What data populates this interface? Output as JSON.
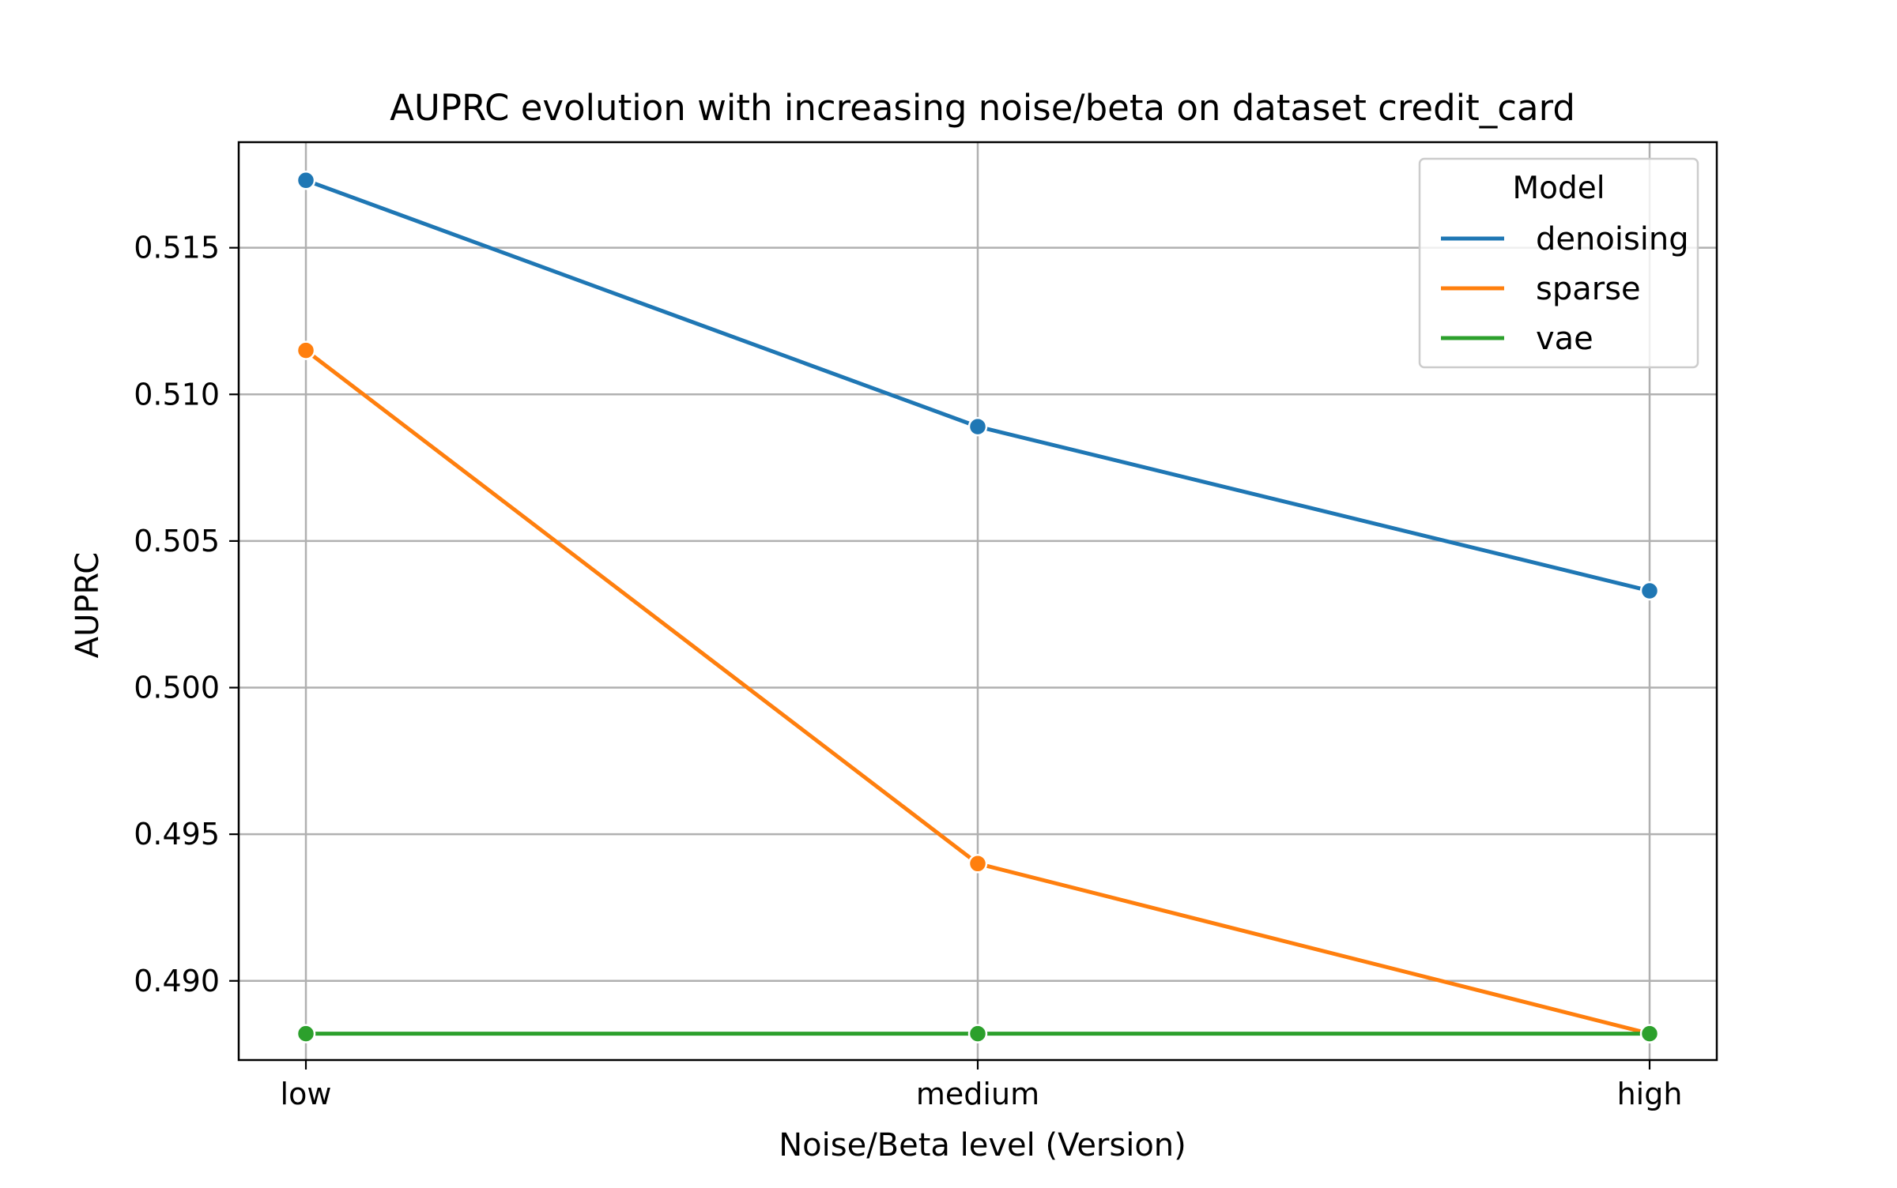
{
  "chart_data": {
    "type": "line",
    "title": "AUPRC evolution with increasing noise/beta on dataset credit_card",
    "xlabel": "Noise/Beta level (Version)",
    "ylabel": "AUPRC",
    "categories": [
      "low",
      "medium",
      "high"
    ],
    "ylim": [
      0.4873,
      0.5186
    ],
    "yticks": [
      0.49,
      0.495,
      0.5,
      0.505,
      0.51,
      0.515
    ],
    "ytick_labels": [
      "0.490",
      "0.495",
      "0.500",
      "0.505",
      "0.510",
      "0.515"
    ],
    "grid": true,
    "legend": {
      "title": "Model",
      "placement": "top-right"
    },
    "series": [
      {
        "name": "denoising",
        "color": "#1f77b4",
        "values": [
          0.5173,
          0.5089,
          0.5033
        ]
      },
      {
        "name": "sparse",
        "color": "#ff7f0e",
        "values": [
          0.5115,
          0.494,
          0.4882
        ]
      },
      {
        "name": "vae",
        "color": "#2ca02c",
        "values": [
          0.4882,
          0.4882,
          0.4882
        ]
      }
    ]
  }
}
